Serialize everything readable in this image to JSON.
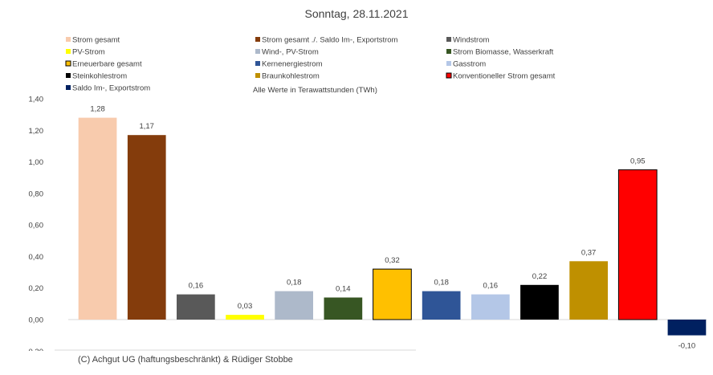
{
  "chart_data": {
    "type": "bar",
    "title": "Sonntag, 28.11.2021",
    "subtitle": "Alle Werte in Terawattstunden (TWh)",
    "ylim": [
      -0.2,
      1.4
    ],
    "yticks": [
      "-0,20",
      "0,00",
      "0,20",
      "0,40",
      "0,60",
      "0,80",
      "1,00",
      "1,20",
      "1,40"
    ],
    "ytick_values": [
      -0.2,
      0,
      0.2,
      0.4,
      0.6,
      0.8,
      1.0,
      1.2,
      1.4
    ],
    "grid": false,
    "legend_position": "top",
    "series": [
      {
        "name": "Strom gesamt",
        "value": 1.28,
        "label": "1,28",
        "color": "#F8CBAD",
        "border": false
      },
      {
        "name": "Strom gesamt ./. Saldo Im-, Exportstrom",
        "value": 1.17,
        "label": "1,17",
        "color": "#843C0C",
        "border": false
      },
      {
        "name": "Windstrom",
        "value": 0.16,
        "label": "0,16",
        "color": "#595959",
        "border": false
      },
      {
        "name": "PV-Strom",
        "value": 0.03,
        "label": "0,03",
        "color": "#FFFF00",
        "border": false
      },
      {
        "name": "Wind-, PV-Strom",
        "value": 0.18,
        "label": "0,18",
        "color": "#ADB9CA",
        "border": false
      },
      {
        "name": "Strom Biomasse, Wasserkraft",
        "value": 0.14,
        "label": "0,14",
        "color": "#375623",
        "border": false
      },
      {
        "name": "Erneuerbare gesamt",
        "value": 0.32,
        "label": "0,32",
        "color": "#FFC000",
        "border": true
      },
      {
        "name": "Kernenergiestrom",
        "value": 0.18,
        "label": "0,18",
        "color": "#2F5597",
        "border": false
      },
      {
        "name": "Gasstrom",
        "value": 0.16,
        "label": "0,16",
        "color": "#B4C7E7",
        "border": false
      },
      {
        "name": "Steinkohlestrom",
        "value": 0.22,
        "label": "0,22",
        "color": "#000000",
        "border": false
      },
      {
        "name": "Braunkohlestrom",
        "value": 0.37,
        "label": "0,37",
        "color": "#BF9000",
        "border": false
      },
      {
        "name": "Konventioneller Strom gesamt",
        "value": 0.95,
        "label": "0,95",
        "color": "#FF0000",
        "border": true
      },
      {
        "name": "Saldo Im-, Exportstrom",
        "value": -0.1,
        "label": "-0,10",
        "color": "#002060",
        "border": false
      }
    ]
  },
  "footer": "(C) Achgut UG (haftungsbeschränkt) & Rüdiger Stobbe"
}
